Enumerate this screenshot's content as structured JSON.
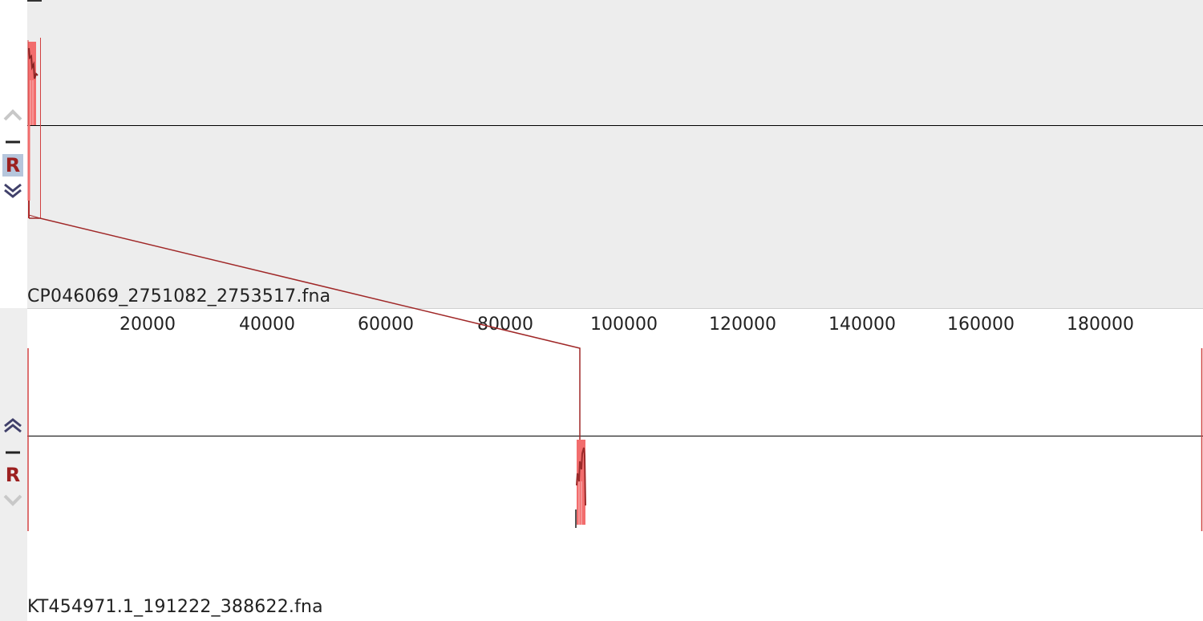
{
  "genomes": {
    "top": {
      "name": "CP046069_2751082_2753517.fna"
    },
    "bottom": {
      "name": "KT454971.1_191222_388622.fna"
    }
  },
  "controls": {
    "top": {
      "up_icon": "chevron-up-icon",
      "minus_icon": "minus-icon",
      "reverse_label": "R",
      "down_icon": "chevron-down-icon",
      "reverse_selected": true
    },
    "bottom": {
      "up_icon": "chevron-up-icon",
      "minus_icon": "minus-icon",
      "reverse_label": "R",
      "down_icon": "chevron-down-icon",
      "reverse_selected": false
    }
  },
  "ruler": {
    "ticks": [
      "20000",
      "40000",
      "60000",
      "80000",
      "100000",
      "120000",
      "140000",
      "160000",
      "180000"
    ]
  },
  "colors": {
    "block_fill": "#f26d6d",
    "block_dark": "#a83232",
    "connector": "#a02828",
    "top_background": "#ededed",
    "bottom_background": "#ffffff",
    "reverse_label": "#9c2020"
  }
}
